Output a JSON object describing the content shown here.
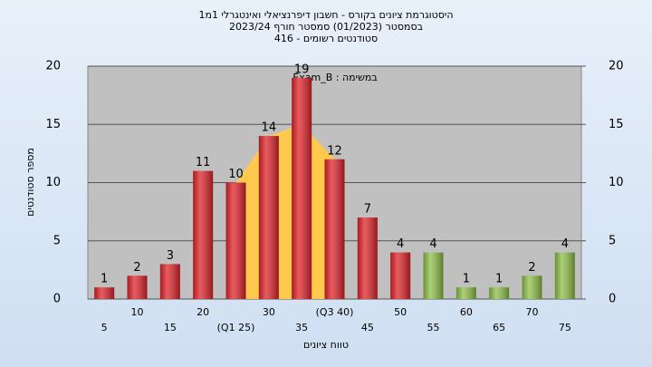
{
  "chart_data": {
    "type": "bar",
    "title": "היסטוגרמת ציונים בקורס - חשבון דיפרנציאלי ואינטגרלי 1מ1",
    "subtitle": "בסמסטר  (01/2023)  סמסטר חורף  2023/24",
    "subtitle2": "סטודנטים רשומים - 416",
    "annotation": "במשימה : Exam_B",
    "xlabel": "טווח ציונים",
    "ylabel": "מספר סטודנטים",
    "categories": [
      "5",
      "10",
      "15",
      "20",
      "(Q1 25)",
      "30",
      "35",
      "(Q3 40)",
      "45",
      "50",
      "55",
      "60",
      "65",
      "70",
      "75"
    ],
    "values": [
      1,
      2,
      3,
      11,
      10,
      14,
      19,
      12,
      7,
      4,
      4,
      1,
      1,
      2,
      4
    ],
    "colors": [
      "#e0252b",
      "#e0252b",
      "#e0252b",
      "#e0252b",
      "#e0252b",
      "#e0252b",
      "#e0252b",
      "#e0252b",
      "#e0252b",
      "#e0252b",
      "#8fc04a",
      "#8fc04a",
      "#8fc04a",
      "#8fc04a",
      "#8fc04a"
    ],
    "band_values": [
      null,
      null,
      null,
      null,
      10,
      14,
      15,
      12,
      null,
      null,
      null,
      null,
      null,
      null,
      null
    ],
    "band_color": "#ffc94d",
    "ylim": [
      0,
      20
    ],
    "yticks": [
      0,
      5,
      10,
      15,
      20
    ],
    "y2lim": [
      0,
      20
    ],
    "y2ticks": [
      0,
      5,
      10,
      15,
      20
    ],
    "grid": true
  }
}
